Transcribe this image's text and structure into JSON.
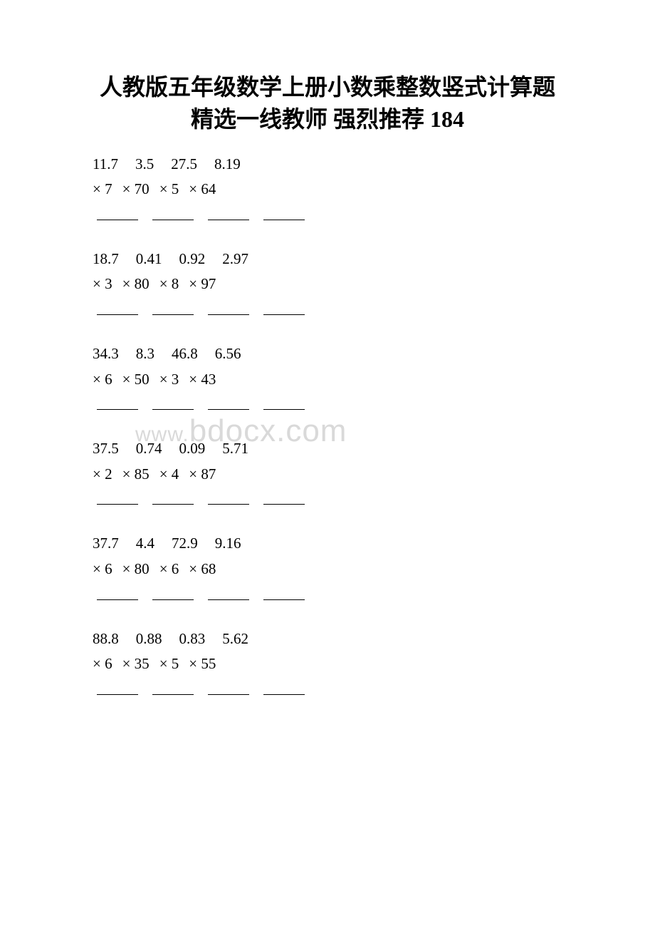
{
  "title": {
    "line1": "人教版五年级数学上册小数乘整数竖式计算题",
    "line2": "精选一线教师 强烈推荐 184"
  },
  "watermark": {
    "prefix": "www.",
    "main": "bdocx.com"
  },
  "groups": [
    {
      "operands": [
        "11.7",
        "3.5",
        "27.5",
        "8.19"
      ],
      "multipliers": [
        "× 7",
        "× 70",
        "× 5",
        "× 64"
      ]
    },
    {
      "operands": [
        "18.7",
        "0.41",
        "0.92",
        "2.97"
      ],
      "multipliers": [
        "× 3",
        "× 80",
        "× 8",
        "× 97"
      ]
    },
    {
      "operands": [
        "34.3",
        "8.3",
        "46.8",
        "6.56"
      ],
      "multipliers": [
        "× 6",
        "× 50",
        "× 3",
        "× 43"
      ]
    },
    {
      "operands": [
        "37.5",
        "0.74",
        "0.09",
        "5.71"
      ],
      "multipliers": [
        "× 2",
        "× 85",
        "× 4",
        "× 87"
      ]
    },
    {
      "operands": [
        "37.7",
        "4.4",
        "72.9",
        "9.16"
      ],
      "multipliers": [
        "× 6",
        "× 80",
        "× 6",
        "× 68"
      ]
    },
    {
      "operands": [
        "88.8",
        "0.88",
        "0.83",
        "5.62"
      ],
      "multipliers": [
        "× 6",
        "× 35",
        "× 5",
        "× 55"
      ]
    }
  ],
  "style": {
    "background_color": "#ffffff",
    "text_color": "#000000",
    "watermark_color": "#d9d9d9",
    "title_fontsize": 32,
    "body_fontsize": 21,
    "line_width": 58
  }
}
